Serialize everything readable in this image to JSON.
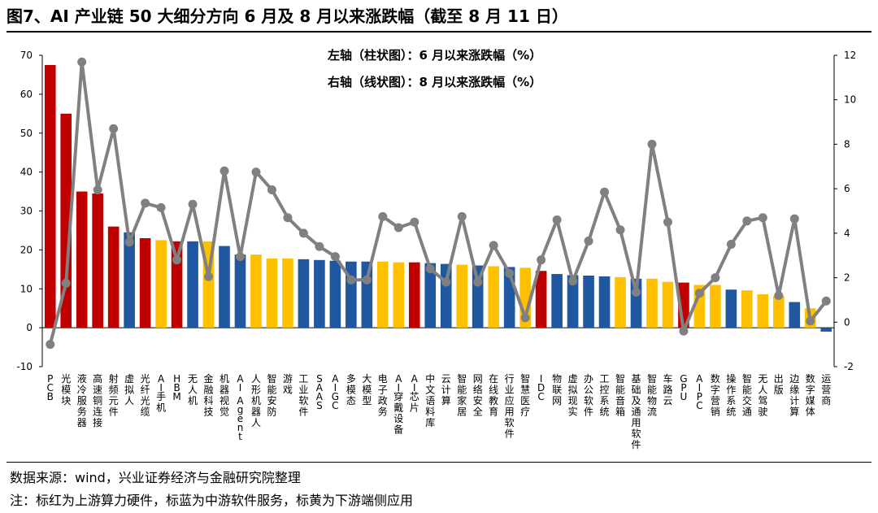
{
  "title": "图7、AI 产业链 50 大细分方向 6 月及 8 月以来涨跌幅（截至 8 月 11 日）",
  "source": "数据来源：wind，兴业证券经济与金融研究院整理",
  "note": "注：标红为上游算力硬件，标蓝为中游软件服务，标黄为下游端侧应用",
  "colors": {
    "red": "#c00000",
    "blue": "#1f57a0",
    "yellow": "#ffc000",
    "line": "#808080"
  },
  "chart_data": {
    "type": "bar",
    "title": "图7、AI 产业链 50 大细分方向 6 月及 8 月以来涨跌幅（截至 8 月 11 日）",
    "annotations": [
      "左轴（柱状图）：6 月以来涨跌幅（%）",
      "右轴（线状图）：8 月以来涨跌幅（%）"
    ],
    "left_axis": {
      "ylim": [
        -10,
        70
      ],
      "ticks": [
        -10,
        0,
        10,
        20,
        30,
        40,
        50,
        60,
        70
      ]
    },
    "right_axis": {
      "ylim": [
        -2,
        12
      ],
      "ticks": [
        -2,
        0,
        2,
        4,
        6,
        8,
        10,
        12
      ]
    },
    "categories": [
      "PCB",
      "光模块",
      "液冷服务器",
      "高速铜连接",
      "射频元件",
      "虚拟人",
      "光纤光缆",
      "AI手机",
      "HBM",
      "无人机",
      "金融科技",
      "机器视觉",
      "AI Agent",
      "人形机器人",
      "智能安防",
      "游戏",
      "工业软件",
      "SAAS",
      "AIGC",
      "多模态",
      "大模型",
      "电子政务",
      "AI穿戴设备",
      "AI芯片",
      "中文语料库",
      "云计算",
      "智能家居",
      "网络安全",
      "在线教育",
      "行业应用软件",
      "智慧医疗",
      "IDC",
      "物联网",
      "虚拟现实",
      "办公软件",
      "工控系统",
      "智能音箱",
      "基础及通用软件",
      "智能物流",
      "车路云",
      "GPU",
      "AIPC",
      "数字营销",
      "操作系统",
      "智能交通",
      "无人驾驶",
      "出版",
      "边缘计算",
      "数字媒体",
      "运营商"
    ],
    "segment": [
      "red",
      "red",
      "red",
      "red",
      "red",
      "blue",
      "red",
      "yellow",
      "red",
      "blue",
      "yellow",
      "blue",
      "blue",
      "yellow",
      "yellow",
      "yellow",
      "blue",
      "blue",
      "blue",
      "blue",
      "blue",
      "yellow",
      "yellow",
      "red",
      "blue",
      "blue",
      "yellow",
      "blue",
      "yellow",
      "blue",
      "yellow",
      "red",
      "blue",
      "blue",
      "blue",
      "blue",
      "yellow",
      "blue",
      "yellow",
      "yellow",
      "red",
      "yellow",
      "yellow",
      "blue",
      "yellow",
      "yellow",
      "yellow",
      "blue",
      "yellow",
      "blue"
    ],
    "series": [
      {
        "name": "6月以来涨跌幅（%）",
        "axis": "left",
        "type": "bar",
        "values": [
          67.5,
          55,
          35,
          34.5,
          26,
          24.5,
          23,
          22.5,
          22.2,
          22.2,
          22.2,
          21,
          18.8,
          18.8,
          17.8,
          17.8,
          17.6,
          17.4,
          17.2,
          17,
          17,
          17,
          16.8,
          16.8,
          16.6,
          16.4,
          16.2,
          16,
          15.8,
          15.6,
          15.4,
          14.6,
          13.8,
          13.5,
          13.4,
          13.2,
          13,
          12.6,
          12.6,
          11.8,
          11.6,
          11,
          11,
          9.8,
          9.6,
          8.6,
          8.2,
          6.6,
          5,
          -1
        ]
      },
      {
        "name": "8月以来涨跌幅（%）",
        "axis": "right",
        "type": "line",
        "values": [
          -1,
          1.75,
          11.7,
          5.95,
          8.7,
          3.6,
          5.35,
          5.15,
          2.8,
          5.3,
          2.05,
          6.8,
          2.95,
          6.75,
          5.95,
          4.7,
          4,
          3.4,
          2.95,
          1.9,
          1.9,
          4.75,
          4.25,
          4.5,
          2.4,
          1.8,
          4.75,
          1.8,
          3.45,
          2.2,
          0.2,
          2.8,
          4.6,
          1.85,
          3.65,
          5.85,
          4.15,
          1.35,
          8,
          4.5,
          -0.4,
          1.3,
          2,
          3.5,
          4.55,
          4.7,
          1.2,
          4.65,
          0.05,
          0.95
        ]
      }
    ]
  }
}
